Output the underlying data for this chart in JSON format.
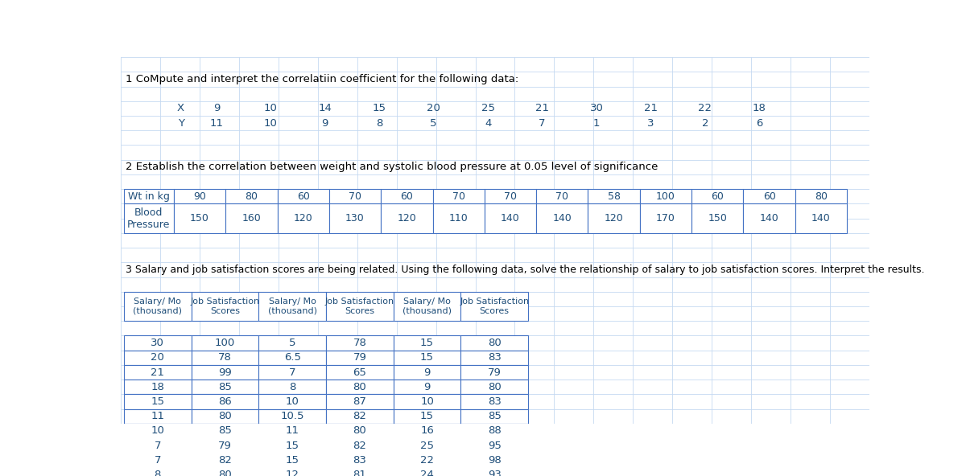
{
  "title1": "1 CoMpute and interpret the correlatiin coefficient for the following data:",
  "table1_row_labels": [
    "X",
    "Y"
  ],
  "table1_data": [
    [
      9,
      10,
      14,
      15,
      20,
      25,
      21,
      30,
      21,
      22,
      18
    ],
    [
      11,
      10,
      9,
      8,
      5,
      4,
      7,
      1,
      3,
      2,
      6
    ]
  ],
  "title2": "2 Establish the correlation between weight and systolic blood pressure at 0.05 level of significance",
  "table2_row1_label": "Wt in kg",
  "table2_row2_label": "Blood\nPressure",
  "table2_data": [
    [
      90,
      80,
      60,
      70,
      60,
      70,
      70,
      70,
      58,
      100,
      60,
      60,
      80
    ],
    [
      150,
      160,
      120,
      130,
      120,
      110,
      140,
      140,
      120,
      170,
      150,
      140,
      140
    ]
  ],
  "title3": "3 Salary and job satisfaction scores are being related. Using the following data, solve the relationship of salary to job satisfaction scores. Interpret the results.",
  "table3_col_headers": [
    "Salary/ Mo\n(thousand)",
    "Job Satisfaction\nScores",
    "Salary/ Mo\n(thousand)",
    "Job Satisfaction\nScores",
    "Salary/ Mo\n(thousand)",
    "Job Satisfaction\nScores"
  ],
  "table3_data": [
    [
      30,
      100,
      5,
      78,
      15,
      80
    ],
    [
      20,
      78,
      6.5,
      79,
      15,
      83
    ],
    [
      21,
      99,
      7,
      65,
      9,
      79
    ],
    [
      18,
      85,
      8,
      80,
      9,
      80
    ],
    [
      15,
      86,
      10,
      87,
      10,
      83
    ],
    [
      11,
      80,
      10.5,
      82,
      15,
      85
    ],
    [
      10,
      85,
      11,
      80,
      16,
      88
    ],
    [
      7,
      79,
      15,
      82,
      25,
      95
    ],
    [
      7,
      82,
      15,
      83,
      22,
      98
    ],
    [
      8,
      80,
      12,
      81,
      24,
      93
    ]
  ],
  "bg_color": "#ffffff",
  "grid_color": "#c5d9f1",
  "border_color": "#4472c4",
  "text_color": "#1f4e79",
  "title_color": "#000000"
}
